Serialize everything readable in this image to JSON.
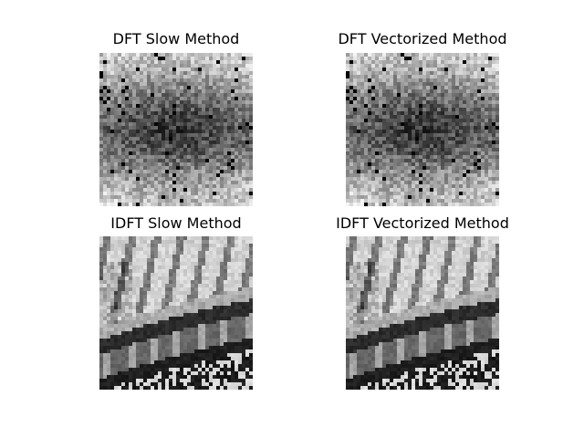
{
  "figure": {
    "panels": [
      {
        "title": "DFT Slow Method",
        "kind": "spectrum"
      },
      {
        "title": "DFT Vectorized Method",
        "kind": "spectrum"
      },
      {
        "title": "IDFT Slow Method",
        "kind": "image"
      },
      {
        "title": "IDFT Vectorized Method",
        "kind": "image"
      }
    ],
    "colormap": "gray_r"
  }
}
